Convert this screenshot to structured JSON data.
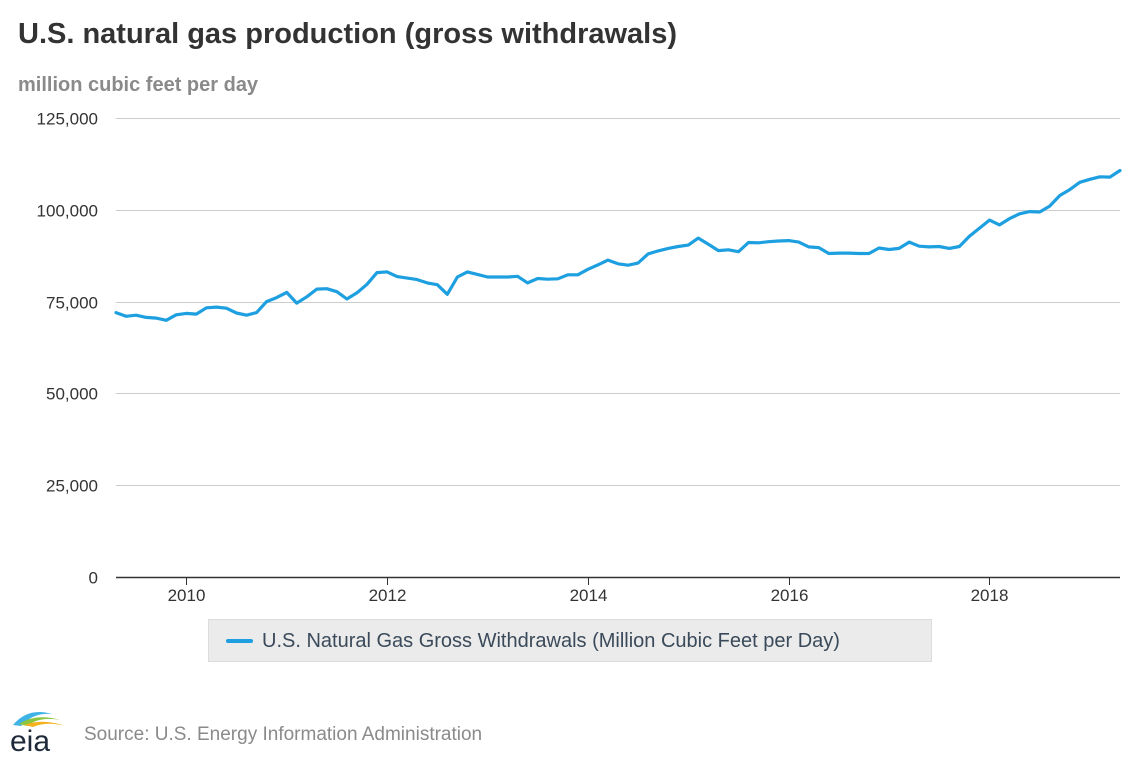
{
  "header": {
    "title": "U.S. natural gas production (gross withdrawals)",
    "subtitle": "million cubic feet per day"
  },
  "legend": {
    "label": "U.S. Natural Gas Gross Withdrawals (Million Cubic Feet per Day)"
  },
  "footer": {
    "logo_text": "eia",
    "source": "Source: U.S. Energy Information Administration"
  },
  "colors": {
    "series": "#1d9fe0",
    "grid": "#cccccc",
    "axis": "#333333"
  },
  "chart_data": {
    "type": "line",
    "title": "U.S. natural gas production (gross withdrawals)",
    "subtitle": "million cubic feet per day",
    "xlabel": "",
    "ylabel": "",
    "ylim": [
      0,
      125000
    ],
    "yticks": [
      0,
      25000,
      50000,
      75000,
      100000,
      125000
    ],
    "ytick_labels": [
      "0",
      "25,000",
      "50,000",
      "75,000",
      "100,000",
      "125,000"
    ],
    "xlim": [
      2009.3,
      2019.3
    ],
    "xticks": [
      2010,
      2012,
      2014,
      2016,
      2018
    ],
    "xtick_labels": [
      "2010",
      "2012",
      "2014",
      "2016",
      "2018"
    ],
    "grid": true,
    "legend_position": "bottom",
    "series": [
      {
        "name": "U.S. Natural Gas Gross Withdrawals (Million Cubic Feet per Day)",
        "x": [
          2009.3,
          2009.4,
          2009.5,
          2009.6,
          2009.7,
          2009.8,
          2009.9,
          2010.0,
          2010.1,
          2010.2,
          2010.3,
          2010.4,
          2010.5,
          2010.6,
          2010.7,
          2010.8,
          2010.9,
          2011.0,
          2011.1,
          2011.2,
          2011.3,
          2011.4,
          2011.5,
          2011.6,
          2011.7,
          2011.8,
          2011.9,
          2012.0,
          2012.1,
          2012.2,
          2012.3,
          2012.4,
          2012.5,
          2012.6,
          2012.7,
          2012.8,
          2012.9,
          2013.0,
          2013.1,
          2013.2,
          2013.3,
          2013.4,
          2013.5,
          2013.6,
          2013.7,
          2013.8,
          2013.9,
          2014.0,
          2014.1,
          2014.2,
          2014.3,
          2014.4,
          2014.5,
          2014.6,
          2014.7,
          2014.8,
          2014.9,
          2015.0,
          2015.1,
          2015.2,
          2015.3,
          2015.4,
          2015.5,
          2015.6,
          2015.7,
          2015.8,
          2015.9,
          2016.0,
          2016.1,
          2016.2,
          2016.3,
          2016.4,
          2016.5,
          2016.6,
          2016.7,
          2016.8,
          2016.9,
          2017.0,
          2017.1,
          2017.2,
          2017.3,
          2017.4,
          2017.5,
          2017.6,
          2017.7,
          2017.8,
          2017.9,
          2018.0,
          2018.1,
          2018.2,
          2018.3,
          2018.4,
          2018.5,
          2018.6,
          2018.7,
          2018.8,
          2018.9,
          2019.0,
          2019.1,
          2019.2,
          2019.3
        ],
        "values": [
          72000,
          71000,
          71300,
          70700,
          70500,
          69900,
          71400,
          71800,
          71600,
          73300,
          73500,
          73200,
          71900,
          71300,
          72000,
          75000,
          76100,
          77500,
          74600,
          76300,
          78400,
          78500,
          77700,
          75700,
          77400,
          79700,
          82900,
          83100,
          81800,
          81400,
          81000,
          80100,
          79600,
          77000,
          81700,
          83100,
          82400,
          81700,
          81700,
          81700,
          81900,
          80100,
          81300,
          81100,
          81200,
          82300,
          82300,
          83800,
          85000,
          86300,
          85300,
          84900,
          85500,
          88000,
          88800,
          89500,
          90000,
          90400,
          92300,
          90600,
          88900,
          89100,
          88600,
          91100,
          91000,
          91300,
          91500,
          91600,
          91200,
          89900,
          89700,
          88100,
          88200,
          88200,
          88100,
          88100,
          89600,
          89200,
          89500,
          91200,
          90100,
          89900,
          90000,
          89500,
          90000,
          92800,
          95000,
          97200,
          95900,
          97600,
          98900,
          99500,
          99400,
          101000,
          103900,
          105500,
          107500,
          108300,
          109000,
          108900,
          110700
        ]
      }
    ]
  }
}
